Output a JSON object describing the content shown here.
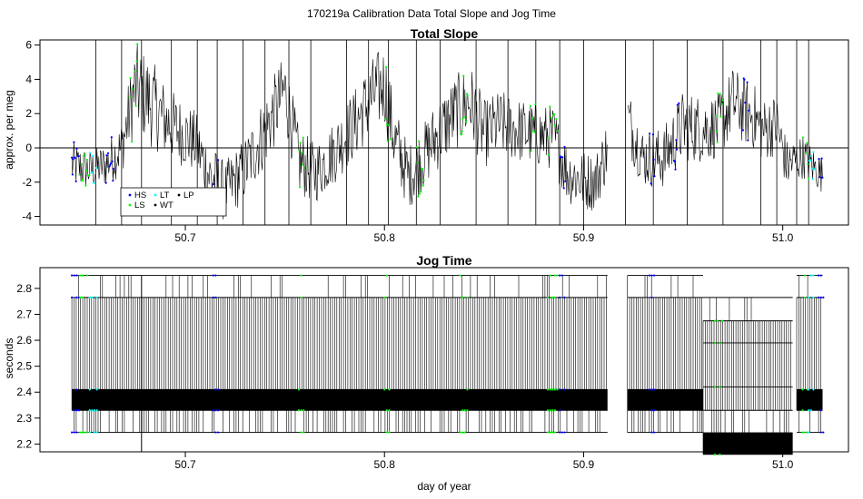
{
  "figure": {
    "main_title": "170219a   Calibration Data Total Slope and Jog Time"
  },
  "chart_data": [
    {
      "type": "line",
      "title": "Total Slope",
      "xlabel": "",
      "ylabel": "approx. per meg",
      "xlim": [
        50.627,
        51.033
      ],
      "ylim": [
        -4.5,
        6.3
      ],
      "x_ticks": [
        50.7,
        50.8,
        50.9,
        51.0
      ],
      "x_tick_labels": [
        "50.7",
        "50.8",
        "50.9",
        "51.0"
      ],
      "y_ticks": [
        -4,
        -2,
        0,
        2,
        4,
        6
      ],
      "y_tick_labels": [
        "-4",
        "-2",
        "0",
        "2",
        "4",
        "6"
      ],
      "reference_line_y": 0,
      "data_x_range": [
        50.643,
        51.02
      ],
      "data_gap": [
        50.912,
        50.922
      ],
      "envelope": {
        "x": [
          50.643,
          50.652,
          50.66,
          50.668,
          50.675,
          50.683,
          50.69,
          50.697,
          50.705,
          50.712,
          50.72,
          50.73,
          50.74,
          50.75,
          50.757,
          50.765,
          50.775,
          50.785,
          50.795,
          50.8,
          50.805,
          50.812,
          50.818,
          50.825,
          50.835,
          50.843,
          50.85,
          50.858,
          50.868,
          50.878,
          50.885,
          50.892,
          50.9,
          50.906,
          50.912,
          50.922,
          50.93,
          50.94,
          50.95,
          50.96,
          50.968,
          50.975,
          50.98,
          50.985,
          50.99,
          50.997,
          51.002,
          51.01,
          51.02
        ],
        "mean": [
          -1.0,
          -1.3,
          -1.0,
          0.0,
          3.6,
          2.6,
          1.6,
          1.0,
          0.3,
          -1.6,
          -2.6,
          -1.2,
          1.0,
          3.4,
          -0.8,
          -1.5,
          -0.2,
          1.4,
          3.2,
          3.7,
          0.5,
          -1.7,
          -0.8,
          0.5,
          2.0,
          2.7,
          0.8,
          1.4,
          1.0,
          0.7,
          0.6,
          -1.5,
          -1.9,
          -2.0,
          0.0,
          1.7,
          -0.6,
          -0.6,
          1.3,
          1.1,
          1.3,
          2.7,
          2.2,
          1.9,
          1.0,
          1.4,
          -1.0,
          -0.5,
          -1.6
        ],
        "half_range": [
          1.4,
          1.2,
          1.3,
          1.6,
          2.6,
          2.6,
          2.2,
          2.0,
          1.9,
          2.0,
          1.8,
          1.9,
          2.2,
          2.2,
          2.0,
          1.8,
          1.9,
          2.1,
          2.3,
          2.4,
          2.2,
          1.9,
          1.9,
          2.1,
          2.2,
          2.3,
          2.0,
          2.0,
          1.9,
          1.9,
          1.9,
          1.8,
          1.8,
          1.7,
          1.9,
          2.0,
          1.7,
          1.8,
          2.1,
          2.0,
          1.9,
          2.1,
          2.0,
          2.0,
          1.9,
          1.8,
          1.5,
          1.3,
          1.1
        ]
      },
      "spikes_x": [
        50.655,
        50.668,
        50.678,
        50.693,
        50.706,
        50.716,
        50.729,
        50.74,
        50.752,
        50.763,
        50.781,
        50.792,
        50.802,
        50.816,
        50.828,
        50.846,
        50.862,
        50.876,
        50.888,
        50.9,
        50.921,
        50.935,
        50.952,
        50.97,
        50.989,
        50.997,
        51.007,
        51.013
      ],
      "tag_groups": [
        {
          "name": "HS",
          "color": "#0000ff",
          "x_ranges": [
            [
              50.643,
              50.647
            ],
            [
              50.66,
              50.664
            ],
            [
              50.714,
              50.717
            ],
            [
              50.888,
              50.891
            ],
            [
              50.933,
              50.936
            ],
            [
              50.945,
              50.948
            ],
            [
              50.98,
              50.983
            ],
            [
              51.018,
              51.021
            ]
          ]
        },
        {
          "name": "LS",
          "color": "#00ff00",
          "x_ranges": [
            [
              50.646,
              50.652
            ],
            [
              50.672,
              50.676
            ],
            [
              50.757,
              50.76
            ],
            [
              50.8,
              50.803
            ],
            [
              50.816,
              50.82
            ],
            [
              50.838,
              50.842
            ],
            [
              50.873,
              50.876
            ],
            [
              50.882,
              50.887
            ],
            [
              50.966,
              50.97
            ],
            [
              51.01,
              51.013
            ]
          ]
        },
        {
          "name": "LT",
          "color": "#00ffff",
          "x_ranges": [
            [
              50.652,
              50.656
            ],
            [
              51.013,
              51.016
            ]
          ]
        },
        {
          "name": "WT",
          "color": "#000000",
          "x_ranges": []
        },
        {
          "name": "LP",
          "color": "#000000",
          "x_ranges": []
        }
      ],
      "legend": {
        "location": "bottom-left",
        "entries": [
          "HS",
          "LS",
          "LT",
          "WT",
          "LP"
        ]
      }
    },
    {
      "type": "line",
      "title": "Jog Time",
      "xlabel": "day of year",
      "ylabel": "seconds",
      "xlim": [
        50.627,
        51.033
      ],
      "ylim": [
        2.17,
        2.88
      ],
      "x_ticks": [
        50.7,
        50.8,
        50.9,
        51.0
      ],
      "x_tick_labels": [
        "50.7",
        "50.8",
        "50.9",
        "51.0"
      ],
      "y_ticks": [
        2.2,
        2.3,
        2.4,
        2.5,
        2.6,
        2.7,
        2.8
      ],
      "y_tick_labels": [
        "2.2",
        "2.3",
        "2.4",
        "2.5",
        "2.6",
        "2.7",
        "2.8"
      ],
      "data_gap": [
        50.912,
        50.922
      ],
      "segments": [
        {
          "x_range": [
            50.643,
            50.912
          ],
          "levels": [
            2.245,
            2.33,
            2.41,
            2.765,
            2.85
          ],
          "dense_band": [
            2.33,
            2.41
          ]
        },
        {
          "x_range": [
            50.922,
            50.96
          ],
          "levels": [
            2.245,
            2.33,
            2.41,
            2.765,
            2.85
          ],
          "dense_band": [
            2.33,
            2.41
          ]
        },
        {
          "x_range": [
            50.96,
            51.005
          ],
          "levels": [
            2.16,
            2.33,
            2.42,
            2.59,
            2.675,
            2.765
          ],
          "dense_band": [
            2.16,
            2.245
          ]
        },
        {
          "x_range": [
            51.007,
            51.02
          ],
          "levels": [
            2.245,
            2.33,
            2.41,
            2.765,
            2.85
          ],
          "dense_band": [
            2.33,
            2.41
          ]
        }
      ],
      "outlier_lines": [
        {
          "x": 50.678,
          "y_range": [
            2.13,
            2.85
          ]
        }
      ],
      "tag_groups": [
        {
          "name": "HS",
          "color": "#0000ff",
          "x_ranges": [
            [
              50.643,
              50.647
            ],
            [
              50.714,
              50.717
            ],
            [
              50.888,
              50.891
            ],
            [
              50.933,
              50.936
            ],
            [
              51.018,
              51.021
            ]
          ]
        },
        {
          "name": "LS",
          "color": "#00ff00",
          "x_ranges": [
            [
              50.646,
              50.652
            ],
            [
              50.757,
              50.76
            ],
            [
              50.8,
              50.803
            ],
            [
              50.838,
              50.842
            ],
            [
              50.882,
              50.887
            ],
            [
              50.966,
              50.97
            ],
            [
              51.01,
              51.013
            ]
          ]
        },
        {
          "name": "LT",
          "color": "#00ffff",
          "x_ranges": [
            [
              50.652,
              50.656
            ],
            [
              51.013,
              51.016
            ]
          ]
        }
      ]
    }
  ]
}
